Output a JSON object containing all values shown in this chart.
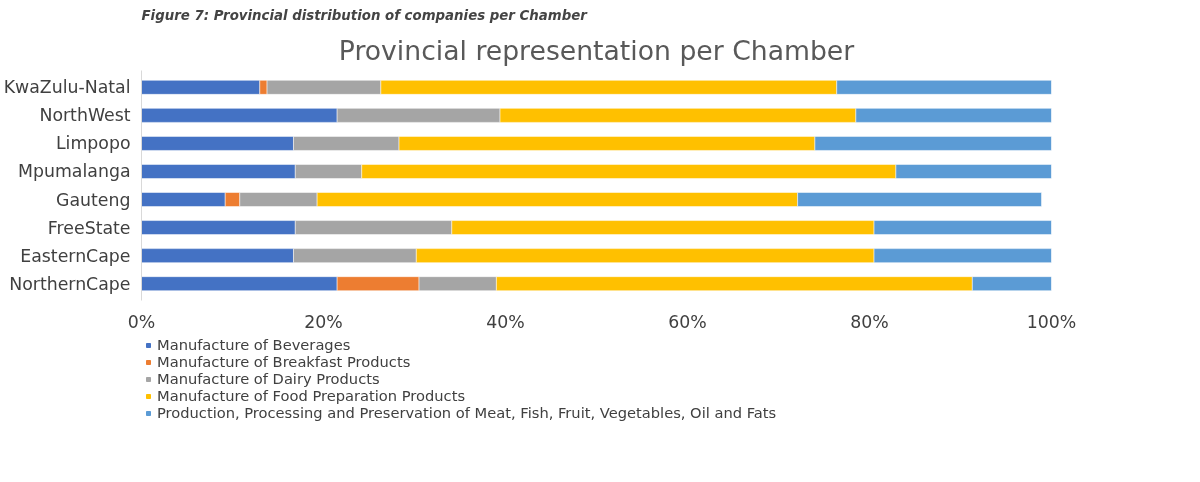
{
  "chart_data": {
    "type": "bar",
    "orientation": "horizontal",
    "stacked": true,
    "title": "Provincial representation per Chamber",
    "annotations": [
      "Figure 7: Provincial distribution of companies per Chamber"
    ],
    "categories": [
      "KwaZulu-Natal",
      "NorthWest",
      "Limpopo",
      "Mpumalanga",
      "Gauteng",
      "FreeState",
      "EasternCape",
      "NorthernCape"
    ],
    "series": [
      {
        "name": "Manufacture of Beverages",
        "color": "#4472c4",
        "values": [
          13.0,
          21.5,
          16.7,
          16.9,
          9.2,
          16.9,
          16.7,
          21.5
        ]
      },
      {
        "name": "Manufacture of Breakfast Products",
        "color": "#ed7d31",
        "values": [
          0.8,
          null,
          null,
          null,
          1.6,
          null,
          null,
          9.0
        ]
      },
      {
        "name": "Manufacture of Dairy Products",
        "color": "#a5a5a5",
        "values": [
          12.5,
          17.9,
          11.6,
          7.3,
          8.5,
          17.2,
          13.5,
          8.5
        ]
      },
      {
        "name": "Manufacture of Food Preparation Products",
        "color": "#ffc000",
        "values": [
          50.1,
          39.1,
          45.7,
          58.7,
          52.8,
          46.4,
          50.3,
          52.3
        ]
      },
      {
        "name": "Production, Processing and Preservation of Meat, Fish, Fruit, Vegetables, Oil and Fats",
        "color": "#5b9bd5",
        "values": [
          23.6,
          21.5,
          26.0,
          17.1,
          26.8,
          19.5,
          19.5,
          8.7
        ]
      }
    ],
    "xlim": [
      0,
      100
    ],
    "xticks": [
      {
        "value": 0,
        "label": "0%"
      },
      {
        "value": 20,
        "label": "20%"
      },
      {
        "value": 40,
        "label": "40%"
      },
      {
        "value": 60,
        "label": "60%"
      },
      {
        "value": 80,
        "label": "80%"
      },
      {
        "value": 100,
        "label": "100%"
      }
    ],
    "grid": false,
    "legend": "bottom"
  }
}
